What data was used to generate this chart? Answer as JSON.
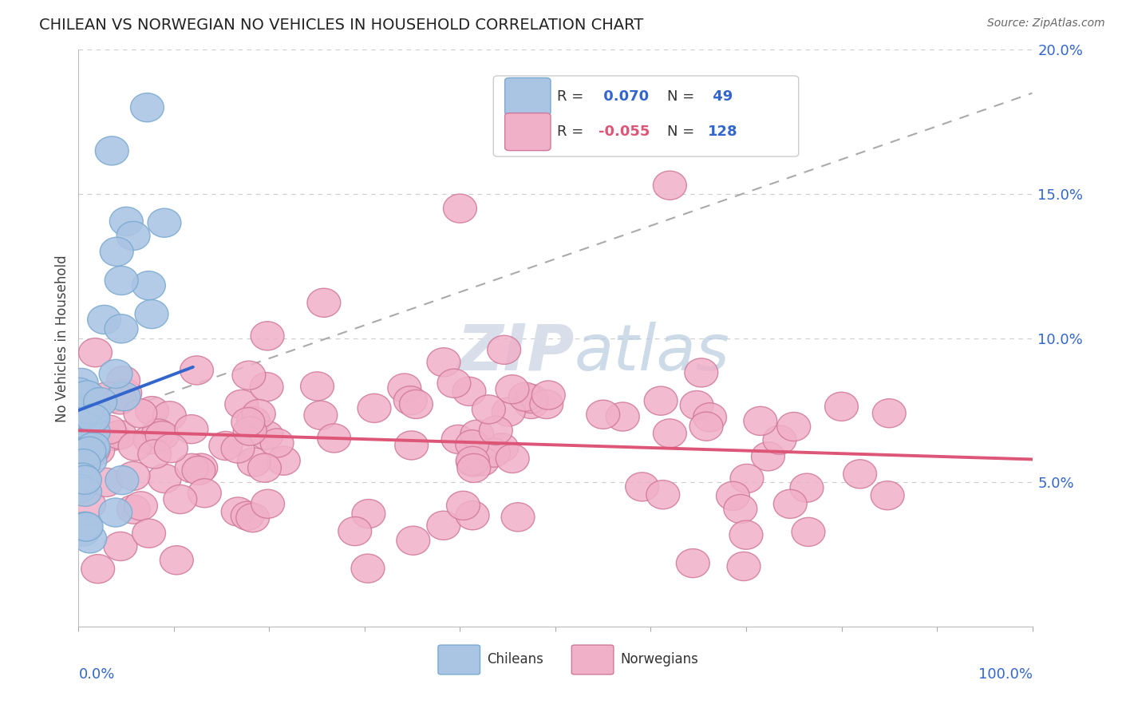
{
  "title": "CHILEAN VS NORWEGIAN NO VEHICLES IN HOUSEHOLD CORRELATION CHART",
  "source": "Source: ZipAtlas.com",
  "ylabel": "No Vehicles in Household",
  "xlim": [
    0,
    100
  ],
  "ylim": [
    0,
    20
  ],
  "yticks": [
    5,
    10,
    15,
    20
  ],
  "ytick_labels": [
    "5.0%",
    "10.0%",
    "15.0%",
    "20.0%"
  ],
  "chilean_color": "#aac4e4",
  "chilean_edge": "#7aaad0",
  "norwegian_color": "#f0b0c8",
  "norwegian_edge": "#d07898",
  "trendline_chilean_color": "#3366cc",
  "trendline_norwegian_color": "#dd5577",
  "trendline_dashed_color": "#aaaaaa",
  "watermark_zip_color": "#d0d8e8",
  "watermark_atlas_color": "#b0c8e8",
  "chilean_N": 49,
  "norwegian_N": 128,
  "background_color": "#ffffff",
  "grid_color": "#cccccc",
  "legend_box_color": "#f0f0f0",
  "legend_R1": "R =",
  "legend_V1": " 0.070",
  "legend_N1_label": "N =",
  "legend_N1_val": " 49",
  "legend_R2": "R =",
  "legend_V2": "-0.055",
  "legend_N2_label": "N =",
  "legend_N2_val": "128",
  "legend_text_color": "#333333",
  "legend_highlight_color": "#3366cc",
  "legend_highlight2_color": "#dd5577",
  "chile_trend_x0": 0,
  "chile_trend_y0": 7.5,
  "chile_trend_x1": 12,
  "chile_trend_y1": 9.0,
  "norway_trend_x0": 0,
  "norway_trend_y0": 6.8,
  "norway_trend_x1": 100,
  "norway_trend_y1": 5.8,
  "dashed_trend_x0": 0,
  "dashed_trend_y0": 7.0,
  "dashed_trend_x1": 100,
  "dashed_trend_y1": 18.5
}
